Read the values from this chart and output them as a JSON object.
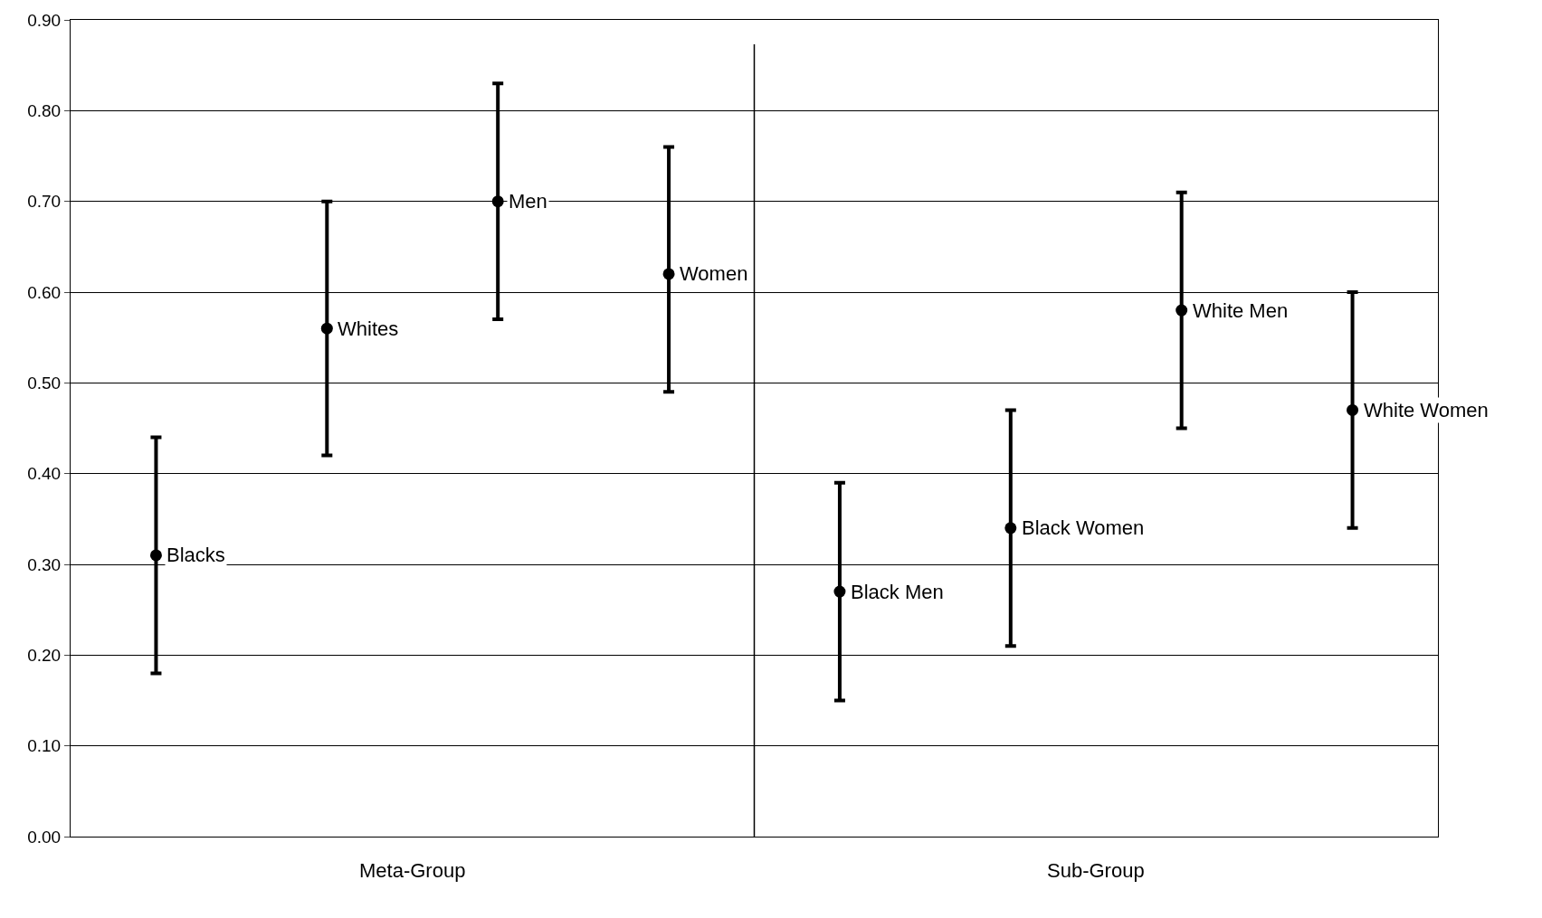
{
  "chart_data": {
    "type": "scatter",
    "categories": [
      null,
      null,
      null,
      null,
      null,
      null,
      null,
      null
    ],
    "values": [
      0.31,
      0.56,
      0.7,
      0.62,
      0.27,
      0.34,
      0.58,
      0.47
    ],
    "errors": [
      [
        0.18,
        0.44
      ],
      [
        0.42,
        0.7
      ],
      [
        0.57,
        0.83
      ],
      [
        0.49,
        0.76
      ],
      [
        0.15,
        0.39
      ],
      [
        0.21,
        0.47
      ],
      [
        0.45,
        0.71
      ],
      [
        0.34,
        0.6
      ]
    ],
    "value_labels": [
      "Blacks",
      "Whites",
      "Men",
      "Women",
      "Black Men",
      "Black Women",
      "White Men",
      "White Women"
    ],
    "color": "#000000",
    "marker": "circle",
    "annotations": [
      "Meta-Group",
      "Sub-Group"
    ],
    "ylim": [
      0,
      0.9
    ],
    "yticks": [
      {
        "value": 0,
        "label": "0.00"
      },
      {
        "value": 0.1,
        "label": "0.10"
      },
      {
        "value": 0.2,
        "label": "0.20"
      },
      {
        "value": 0.3,
        "label": "0.30"
      },
      {
        "value": 0.4,
        "label": "0.40"
      },
      {
        "value": 0.5,
        "label": "0.50"
      },
      {
        "value": 0.6,
        "label": "0.60"
      },
      {
        "value": 0.7,
        "label": "0.70"
      },
      {
        "value": 0.8,
        "label": "0.80"
      },
      {
        "value": 0.9,
        "label": "0.90"
      }
    ],
    "grid": "y"
  }
}
